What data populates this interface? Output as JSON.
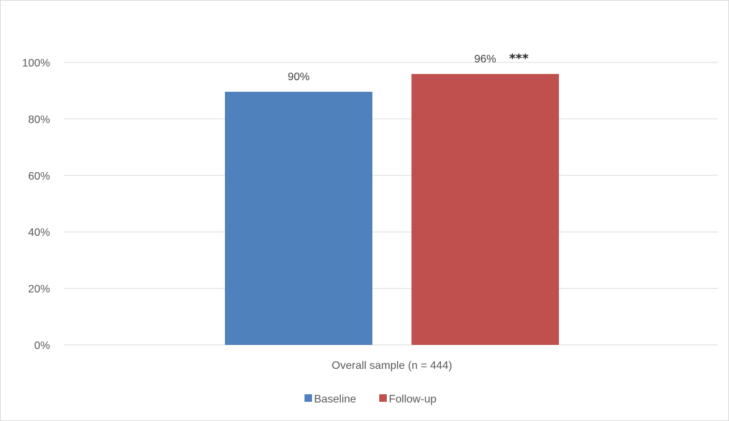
{
  "chart_data": {
    "type": "bar",
    "categories": [
      "Overall sample (n = 444)"
    ],
    "series": [
      {
        "name": "Baseline",
        "values": [
          0.896
        ],
        "label": "90%",
        "annotation": "",
        "color": "#4f81bd"
      },
      {
        "name": "Follow-up",
        "values": [
          0.959
        ],
        "label": "96%",
        "annotation": "***",
        "color": "#c0504d"
      }
    ],
    "ylim": [
      0,
      1.0
    ],
    "yticks": [
      0,
      0.2,
      0.4,
      0.6,
      0.8,
      1.0
    ],
    "ytick_labels": [
      "0%",
      "20%",
      "40%",
      "60%",
      "80%",
      "100%"
    ],
    "grid": true,
    "legend_position": "bottom",
    "title": "",
    "xlabel": "",
    "ylabel": ""
  }
}
